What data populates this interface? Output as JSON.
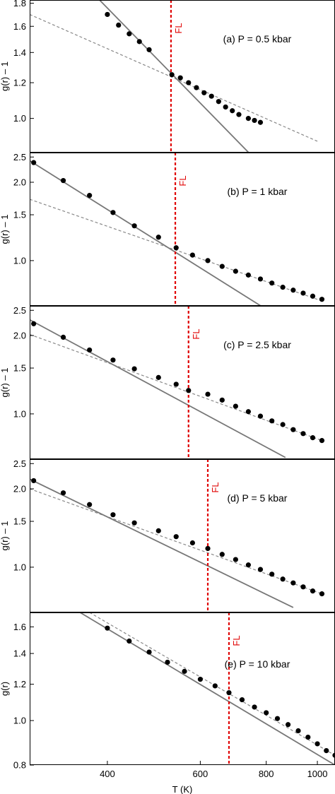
{
  "figure": {
    "xlabel": "T (K)"
  },
  "colors": {
    "solid_fit": "#777777",
    "dashed_fit": "#888888",
    "fl_line": "#e00000",
    "points": "#000000"
  },
  "chart_data": [
    {
      "type": "scatter",
      "panel": "a",
      "annotation": "(a) P = 0.5 kbar",
      "ylabel": "g(r) – 1",
      "fl_label": "FL",
      "fl_T": 528,
      "xscale": "log",
      "yscale": "log",
      "xlim": [
        285,
        1080
      ],
      "ylim": [
        0.84,
        1.83
      ],
      "yticks": [
        {
          "v": 1.0,
          "label": "1.0"
        },
        {
          "v": 1.2,
          "label": "1.2"
        },
        {
          "v": 1.4,
          "label": "1.4"
        },
        {
          "v": 1.6,
          "label": "1.6"
        },
        {
          "v": 1.8,
          "label": "1.8"
        }
      ],
      "points": [
        [
          400,
          1.7
        ],
        [
          420,
          1.61
        ],
        [
          440,
          1.54
        ],
        [
          460,
          1.48
        ],
        [
          480,
          1.42
        ],
        [
          530,
          1.25
        ],
        [
          550,
          1.23
        ],
        [
          570,
          1.2
        ],
        [
          590,
          1.17
        ],
        [
          610,
          1.14
        ],
        [
          630,
          1.12
        ],
        [
          650,
          1.09
        ],
        [
          670,
          1.06
        ],
        [
          690,
          1.04
        ],
        [
          710,
          1.02
        ],
        [
          740,
          1.0
        ],
        [
          760,
          0.99
        ],
        [
          780,
          0.98
        ]
      ],
      "solid_fit": [
        [
          365,
          1.96
        ],
        [
          780,
          0.79
        ]
      ],
      "dashed_fit": [
        [
          285,
          1.7
        ],
        [
          1000,
          0.89
        ]
      ]
    },
    {
      "type": "scatter",
      "panel": "b",
      "annotation": "(b) P = 1 kbar",
      "ylabel": "g(r) – 1",
      "fl_label": "FL",
      "fl_T": 538,
      "xscale": "log",
      "yscale": "log",
      "xlim": [
        285,
        1080
      ],
      "ylim": [
        0.67,
        2.6
      ],
      "yticks": [
        {
          "v": 1.0,
          "label": "1.0"
        },
        {
          "v": 1.5,
          "label": "1.5"
        },
        {
          "v": 2.0,
          "label": "2.0"
        },
        {
          "v": 2.5,
          "label": "2.5"
        }
      ],
      "points": [
        [
          290,
          2.38
        ],
        [
          330,
          2.03
        ],
        [
          370,
          1.78
        ],
        [
          410,
          1.53
        ],
        [
          450,
          1.36
        ],
        [
          500,
          1.23
        ],
        [
          540,
          1.12
        ],
        [
          580,
          1.05
        ],
        [
          620,
          1.0
        ],
        [
          660,
          0.95
        ],
        [
          700,
          0.91
        ],
        [
          740,
          0.88
        ],
        [
          780,
          0.85
        ],
        [
          820,
          0.82
        ],
        [
          860,
          0.79
        ],
        [
          900,
          0.77
        ],
        [
          940,
          0.75
        ],
        [
          980,
          0.73
        ],
        [
          1020,
          0.71
        ]
      ],
      "solid_fit": [
        [
          285,
          2.42
        ],
        [
          800,
          0.65
        ]
      ],
      "dashed_fit": [
        [
          285,
          1.72
        ],
        [
          1020,
          0.7
        ]
      ]
    },
    {
      "type": "scatter",
      "panel": "c",
      "annotation": "(c) P = 2.5 kbar",
      "ylabel": "g(r) – 1",
      "fl_label": "FL",
      "fl_T": 570,
      "xscale": "log",
      "yscale": "log",
      "xlim": [
        285,
        1080
      ],
      "ylim": [
        0.67,
        2.6
      ],
      "yticks": [
        {
          "v": 1.0,
          "label": "1.0"
        },
        {
          "v": 1.5,
          "label": "1.5"
        },
        {
          "v": 2.0,
          "label": "2.0"
        },
        {
          "v": 2.5,
          "label": "2.5"
        }
      ],
      "points": [
        [
          290,
          2.22
        ],
        [
          330,
          1.97
        ],
        [
          370,
          1.76
        ],
        [
          410,
          1.61
        ],
        [
          450,
          1.49
        ],
        [
          500,
          1.38
        ],
        [
          540,
          1.3
        ],
        [
          570,
          1.23
        ],
        [
          620,
          1.19
        ],
        [
          660,
          1.13
        ],
        [
          700,
          1.07
        ],
        [
          740,
          1.02
        ],
        [
          780,
          0.98
        ],
        [
          820,
          0.94
        ],
        [
          860,
          0.91
        ],
        [
          900,
          0.87
        ],
        [
          940,
          0.84
        ],
        [
          980,
          0.81
        ],
        [
          1020,
          0.79
        ]
      ],
      "solid_fit": [
        [
          285,
          2.3
        ],
        [
          870,
          0.68
        ]
      ],
      "dashed_fit": [
        [
          285,
          2.02
        ],
        [
          1020,
          0.79
        ]
      ]
    },
    {
      "type": "scatter",
      "panel": "d",
      "annotation": "(d) P = 5 kbar",
      "ylabel": "g(r) – 1",
      "fl_label": "FL",
      "fl_T": 620,
      "xscale": "log",
      "yscale": "log",
      "xlim": [
        285,
        1080
      ],
      "ylim": [
        0.67,
        2.6
      ],
      "yticks": [
        {
          "v": 1.0,
          "label": "1.0"
        },
        {
          "v": 1.5,
          "label": "1.5"
        },
        {
          "v": 2.0,
          "label": "2.0"
        },
        {
          "v": 2.5,
          "label": "2.5"
        }
      ],
      "points": [
        [
          290,
          2.15
        ],
        [
          330,
          1.93
        ],
        [
          370,
          1.74
        ],
        [
          410,
          1.59
        ],
        [
          450,
          1.48
        ],
        [
          500,
          1.38
        ],
        [
          540,
          1.31
        ],
        [
          580,
          1.24
        ],
        [
          620,
          1.18
        ],
        [
          660,
          1.12
        ],
        [
          700,
          1.07
        ],
        [
          740,
          1.02
        ],
        [
          780,
          0.98
        ],
        [
          820,
          0.94
        ],
        [
          860,
          0.9
        ],
        [
          900,
          0.87
        ],
        [
          940,
          0.84
        ],
        [
          980,
          0.81
        ],
        [
          1020,
          0.79
        ]
      ],
      "solid_fit": [
        [
          285,
          2.18
        ],
        [
          900,
          0.7
        ]
      ],
      "dashed_fit": [
        [
          285,
          2.0
        ],
        [
          1020,
          0.79
        ]
      ]
    },
    {
      "type": "scatter",
      "panel": "e",
      "annotation": "(e) P = 10 kbar",
      "ylabel": "g(r)",
      "fl_label": "FL",
      "fl_T": 680,
      "xscale": "log",
      "yscale": "log",
      "xlim": [
        285,
        1080
      ],
      "ylim": [
        0.8,
        1.72
      ],
      "yticks": [
        {
          "v": 0.8,
          "label": "0.8"
        },
        {
          "v": 1.0,
          "label": "1.0"
        },
        {
          "v": 1.2,
          "label": "1.2"
        },
        {
          "v": 1.4,
          "label": "1.4"
        },
        {
          "v": 1.6,
          "label": "1.6"
        }
      ],
      "xticks": [
        {
          "v": 400,
          "label": "400"
        },
        {
          "v": 600,
          "label": "600"
        },
        {
          "v": 800,
          "label": "800"
        },
        {
          "v": 1000,
          "label": "1000"
        }
      ],
      "points": [
        [
          400,
          1.59
        ],
        [
          440,
          1.49
        ],
        [
          480,
          1.41
        ],
        [
          520,
          1.34
        ],
        [
          560,
          1.28
        ],
        [
          600,
          1.23
        ],
        [
          640,
          1.19
        ],
        [
          680,
          1.15
        ],
        [
          720,
          1.11
        ],
        [
          760,
          1.07
        ],
        [
          800,
          1.04
        ],
        [
          840,
          1.01
        ],
        [
          880,
          0.98
        ],
        [
          920,
          0.95
        ],
        [
          960,
          0.92
        ],
        [
          1000,
          0.89
        ],
        [
          1040,
          0.86
        ],
        [
          1080,
          0.84
        ]
      ],
      "solid_fit": [
        [
          355,
          1.72
        ],
        [
          1080,
          0.8
        ]
      ],
      "dashed_fit": [
        [
          370,
          1.72
        ],
        [
          1080,
          0.84
        ]
      ]
    }
  ]
}
